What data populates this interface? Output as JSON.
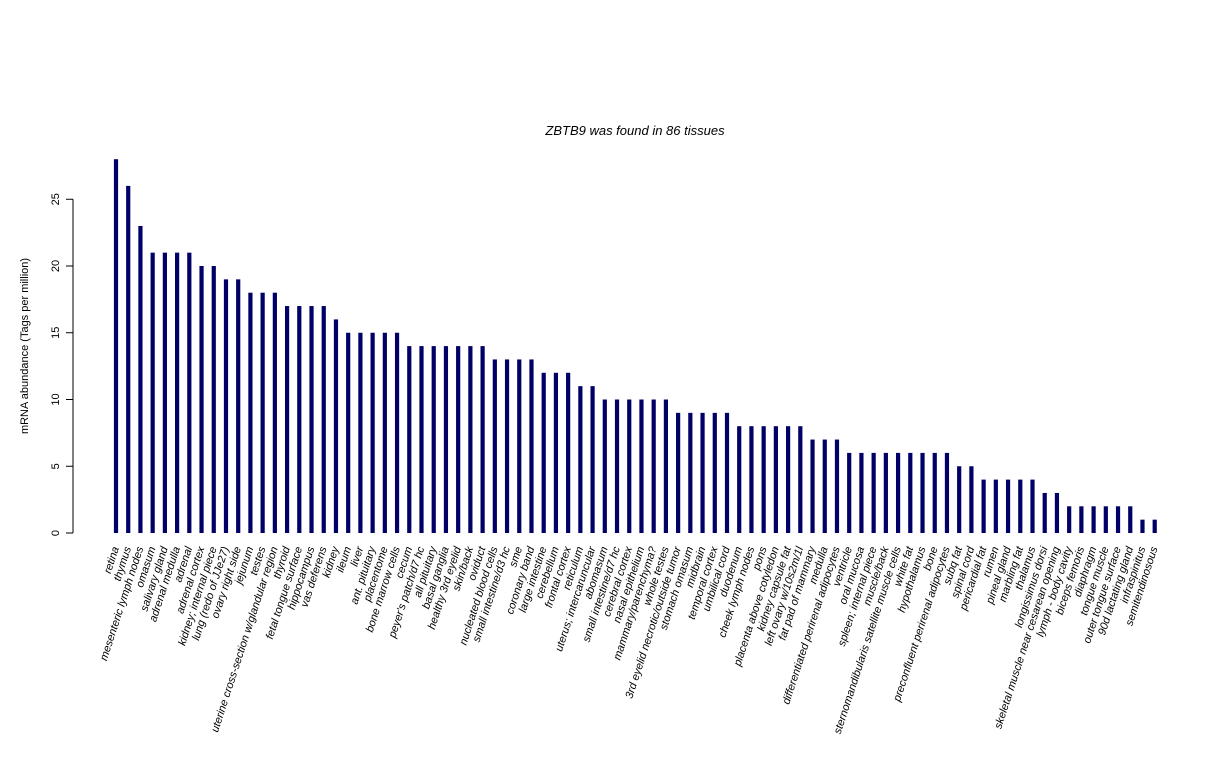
{
  "chart_data": {
    "type": "bar",
    "title": "ZBTB9  was found in  86  tissues",
    "ylabel": "mRNA abundance (Tags per million)",
    "xlabel": "",
    "ylim": [
      0,
      28
    ],
    "yticks": [
      0,
      5,
      10,
      15,
      20,
      25
    ],
    "bar_color": "#000066",
    "grid": false,
    "categories": [
      "retina",
      "thymus",
      "mesenteric lymph nodes",
      "omasum",
      "salivary gland",
      "adrenal medulla",
      "adrenal",
      "adrenal cortex",
      "kidney; internal piece",
      "lung (redo of JJe27)",
      "ovary right side",
      "jejunum",
      "testes",
      "uterine cross-section w/glandular region",
      "thyroid",
      "fetal tongue surface",
      "hippocampus",
      "vas deferens",
      "kidney",
      "ileum",
      "liver",
      "ant. pituitary",
      "placentome",
      "bone marrow cells",
      "cecum",
      "peyer's patch/d7 hc",
      "all pituitary",
      "basal ganglia",
      "healthy 3rd eyelid",
      "skin/back",
      "oviduct",
      "nucleated blood cells",
      "small intestine/d3 hc",
      "sme",
      "coronary band",
      "large intestine",
      "cerebellum",
      "frontal cortex",
      "reticulum",
      "uterus; intercaruncular",
      "abomasum",
      "small intestine/d7 hc",
      "cerebral cortex",
      "nasal epithelium",
      "mammary/parenchyma?",
      "whole testes",
      "3rd eyelid necrotic/outside tumor",
      "stomach omasum",
      "midbrain",
      "temporal cortex",
      "umbilical cord",
      "duodenum",
      "cheek lymph nodes",
      "pons",
      "placenta above cotyledon",
      "kidney capsule fat",
      "left ovary w/10s2m/1l",
      "fat pad of mammary",
      "medulla",
      "differentiated perirenal adipocytes",
      "ventricle",
      "oral mucosa",
      "spleen; internal piece",
      "muscle/back",
      "sternomandibularis satellite muscle cells",
      "white fat",
      "hypothalamus",
      "bone",
      "preconfluent perirenal adipocytes",
      "subq fat",
      "spinal cord",
      "pericardial fat",
      "rumen",
      "pineal gland",
      "marbling fat",
      "thalamus",
      "longissimus dorsi",
      "skeletal muscle near cesarean opening",
      "lymph - body cavity",
      "biceps femoris",
      "diaphragm",
      "tongue muscle",
      "outer tongue surface",
      "90d lactating gland",
      "infraspinitus",
      "semitendinosous"
    ],
    "values": [
      28,
      26,
      23,
      21,
      21,
      21,
      21,
      20,
      20,
      19,
      19,
      18,
      18,
      18,
      17,
      17,
      17,
      17,
      16,
      15,
      15,
      15,
      15,
      15,
      14,
      14,
      14,
      14,
      14,
      14,
      14,
      13,
      13,
      13,
      13,
      12,
      12,
      12,
      11,
      11,
      10,
      10,
      10,
      10,
      10,
      10,
      9,
      9,
      9,
      9,
      9,
      8,
      8,
      8,
      8,
      8,
      8,
      7,
      7,
      7,
      6,
      6,
      6,
      6,
      6,
      6,
      6,
      6,
      6,
      5,
      5,
      4,
      4,
      4,
      4,
      4,
      3,
      3,
      2,
      2,
      2,
      2,
      2,
      2,
      1,
      1
    ]
  }
}
